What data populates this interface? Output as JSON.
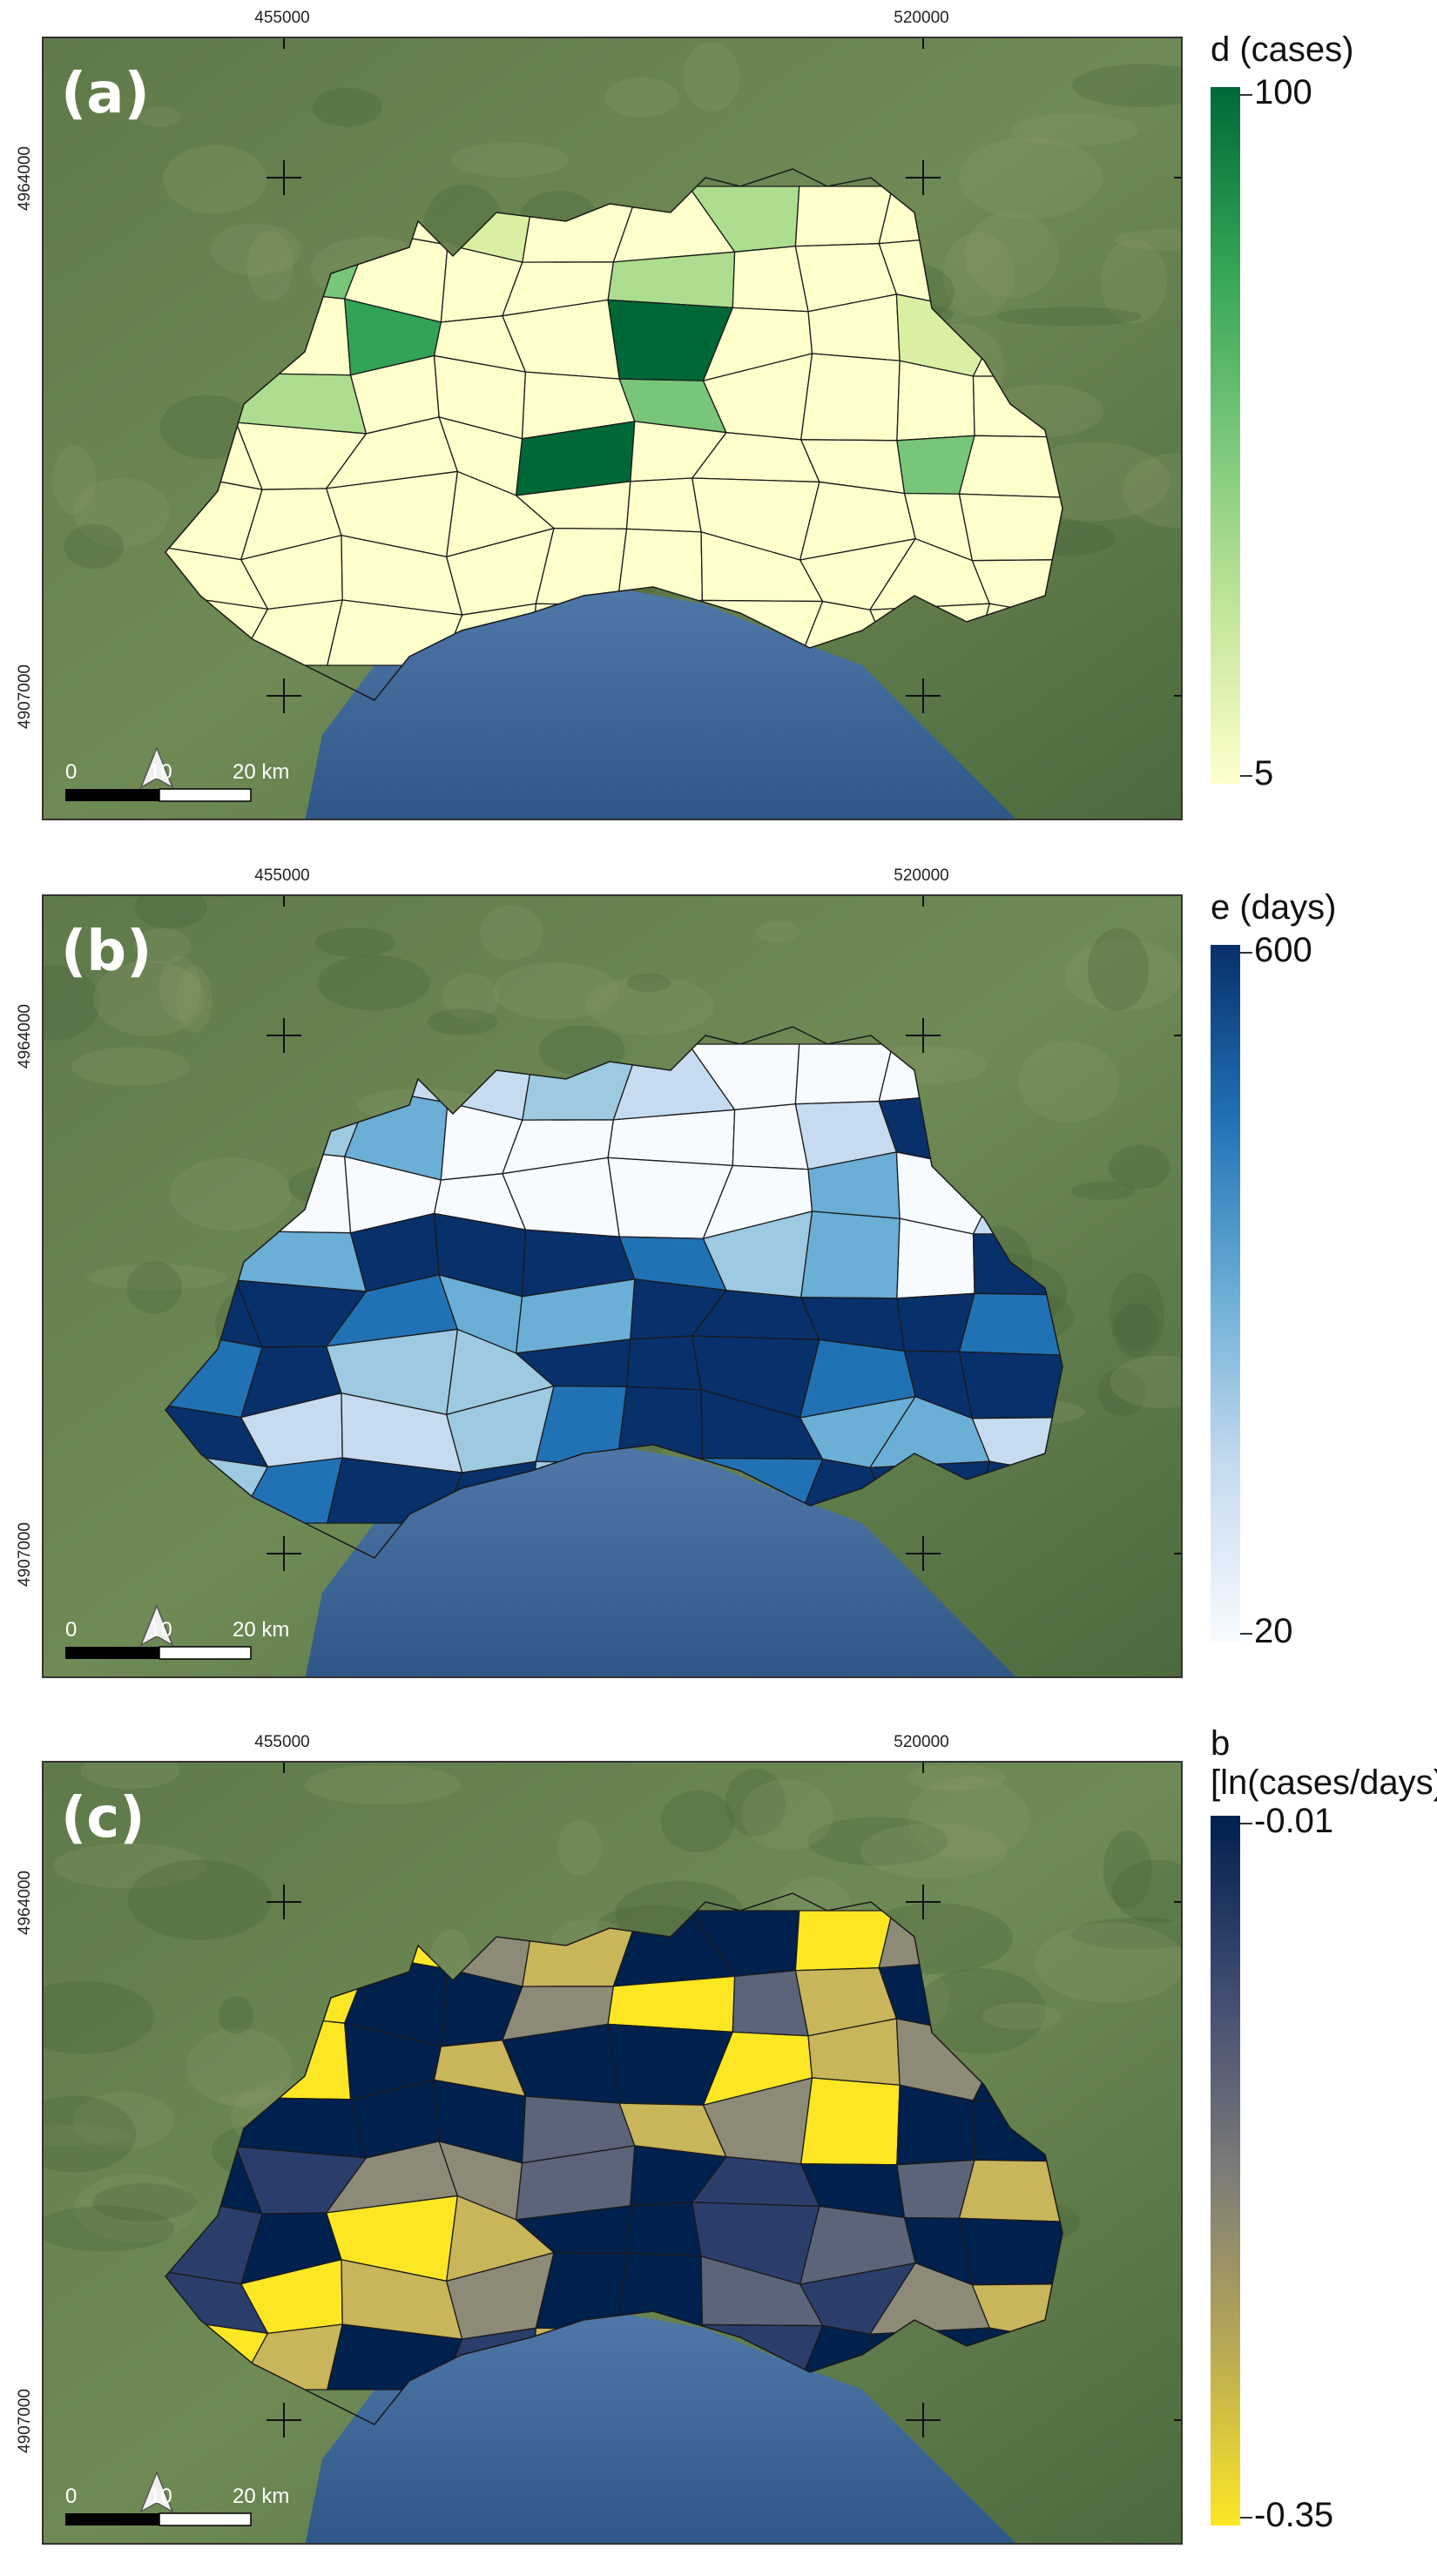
{
  "panels": [
    {
      "id": "a",
      "label": "(a)",
      "legend_title": "d (cases)",
      "legend_max": "100",
      "legend_min": "5",
      "colors": [
        "#ffffcc",
        "#d9f0a3",
        "#addd8e",
        "#78c679",
        "#31a354",
        "#006837"
      ],
      "ramp": [
        "#ffffcc",
        "#c2e699",
        "#78c679",
        "#31a354",
        "#006837"
      ],
      "assign": [
        0,
        0,
        0,
        1,
        0,
        0,
        2,
        0,
        0,
        1,
        0,
        3,
        0,
        0,
        0,
        2,
        0,
        0,
        0,
        0,
        3,
        0,
        4,
        0,
        0,
        5,
        0,
        0,
        1,
        0,
        0,
        2,
        0,
        0,
        0,
        3,
        0,
        0,
        0,
        0,
        0,
        0,
        0,
        0,
        5,
        0,
        0,
        0,
        3,
        0,
        0,
        0,
        0,
        0,
        0,
        0,
        0,
        0,
        0,
        0,
        0,
        0,
        0,
        0,
        0,
        0,
        0,
        0,
        0,
        0,
        0,
        0,
        0,
        0,
        0,
        0,
        0,
        0,
        0,
        0
      ]
    },
    {
      "id": "b",
      "label": "(b)",
      "legend_title": "e (days)",
      "legend_max": "600",
      "legend_min": "20",
      "colors": [
        "#f7fbff",
        "#c6dbef",
        "#9ecae1",
        "#6baed6",
        "#2171b5",
        "#08306b"
      ],
      "ramp": [
        "#f7fbff",
        "#c6dbef",
        "#6baed6",
        "#2171b5",
        "#08306b"
      ],
      "assign": [
        4,
        3,
        1,
        1,
        2,
        1,
        0,
        0,
        0,
        1,
        0,
        2,
        3,
        0,
        0,
        0,
        0,
        1,
        5,
        5,
        4,
        0,
        0,
        0,
        0,
        0,
        0,
        3,
        0,
        1,
        4,
        3,
        5,
        5,
        5,
        4,
        2,
        3,
        0,
        5,
        5,
        5,
        4,
        3,
        3,
        5,
        5,
        5,
        5,
        4,
        4,
        5,
        2,
        2,
        5,
        5,
        5,
        4,
        5,
        5,
        5,
        1,
        1,
        2,
        4,
        5,
        5,
        3,
        3,
        1,
        2,
        4,
        5,
        5,
        2,
        3,
        4,
        5,
        5,
        5
      ]
    },
    {
      "id": "c",
      "label": "(c)",
      "legend_title": "b\n[ln(cases/days)]",
      "legend_max": "-0.01",
      "legend_min": "-0.35",
      "colors": [
        "#fde725",
        "#c9b55a",
        "#8d8b78",
        "#5c6479",
        "#2b3d6b",
        "#00204d"
      ],
      "ramp": [
        "#fde725",
        "#b8a955",
        "#7c7b78",
        "#404c72",
        "#00204d"
      ],
      "assign": [
        1,
        0,
        0,
        2,
        1,
        5,
        5,
        0,
        2,
        5,
        1,
        0,
        5,
        5,
        2,
        0,
        3,
        1,
        5,
        4,
        2,
        0,
        5,
        1,
        5,
        5,
        0,
        1,
        2,
        5,
        4,
        5,
        5,
        5,
        3,
        1,
        2,
        0,
        5,
        5,
        5,
        4,
        2,
        2,
        3,
        5,
        4,
        5,
        3,
        1,
        4,
        5,
        0,
        1,
        5,
        5,
        4,
        3,
        5,
        5,
        4,
        0,
        1,
        2,
        5,
        5,
        3,
        4,
        2,
        1,
        0,
        1,
        5,
        4,
        1,
        2,
        4,
        5,
        5,
        5
      ]
    }
  ],
  "axes": {
    "x_ticks": [
      "455000",
      "520000"
    ],
    "y_ticks": [
      "4964000",
      "4907000"
    ]
  },
  "scalebar": {
    "labels": [
      "0",
      "10",
      "20 km"
    ]
  }
}
